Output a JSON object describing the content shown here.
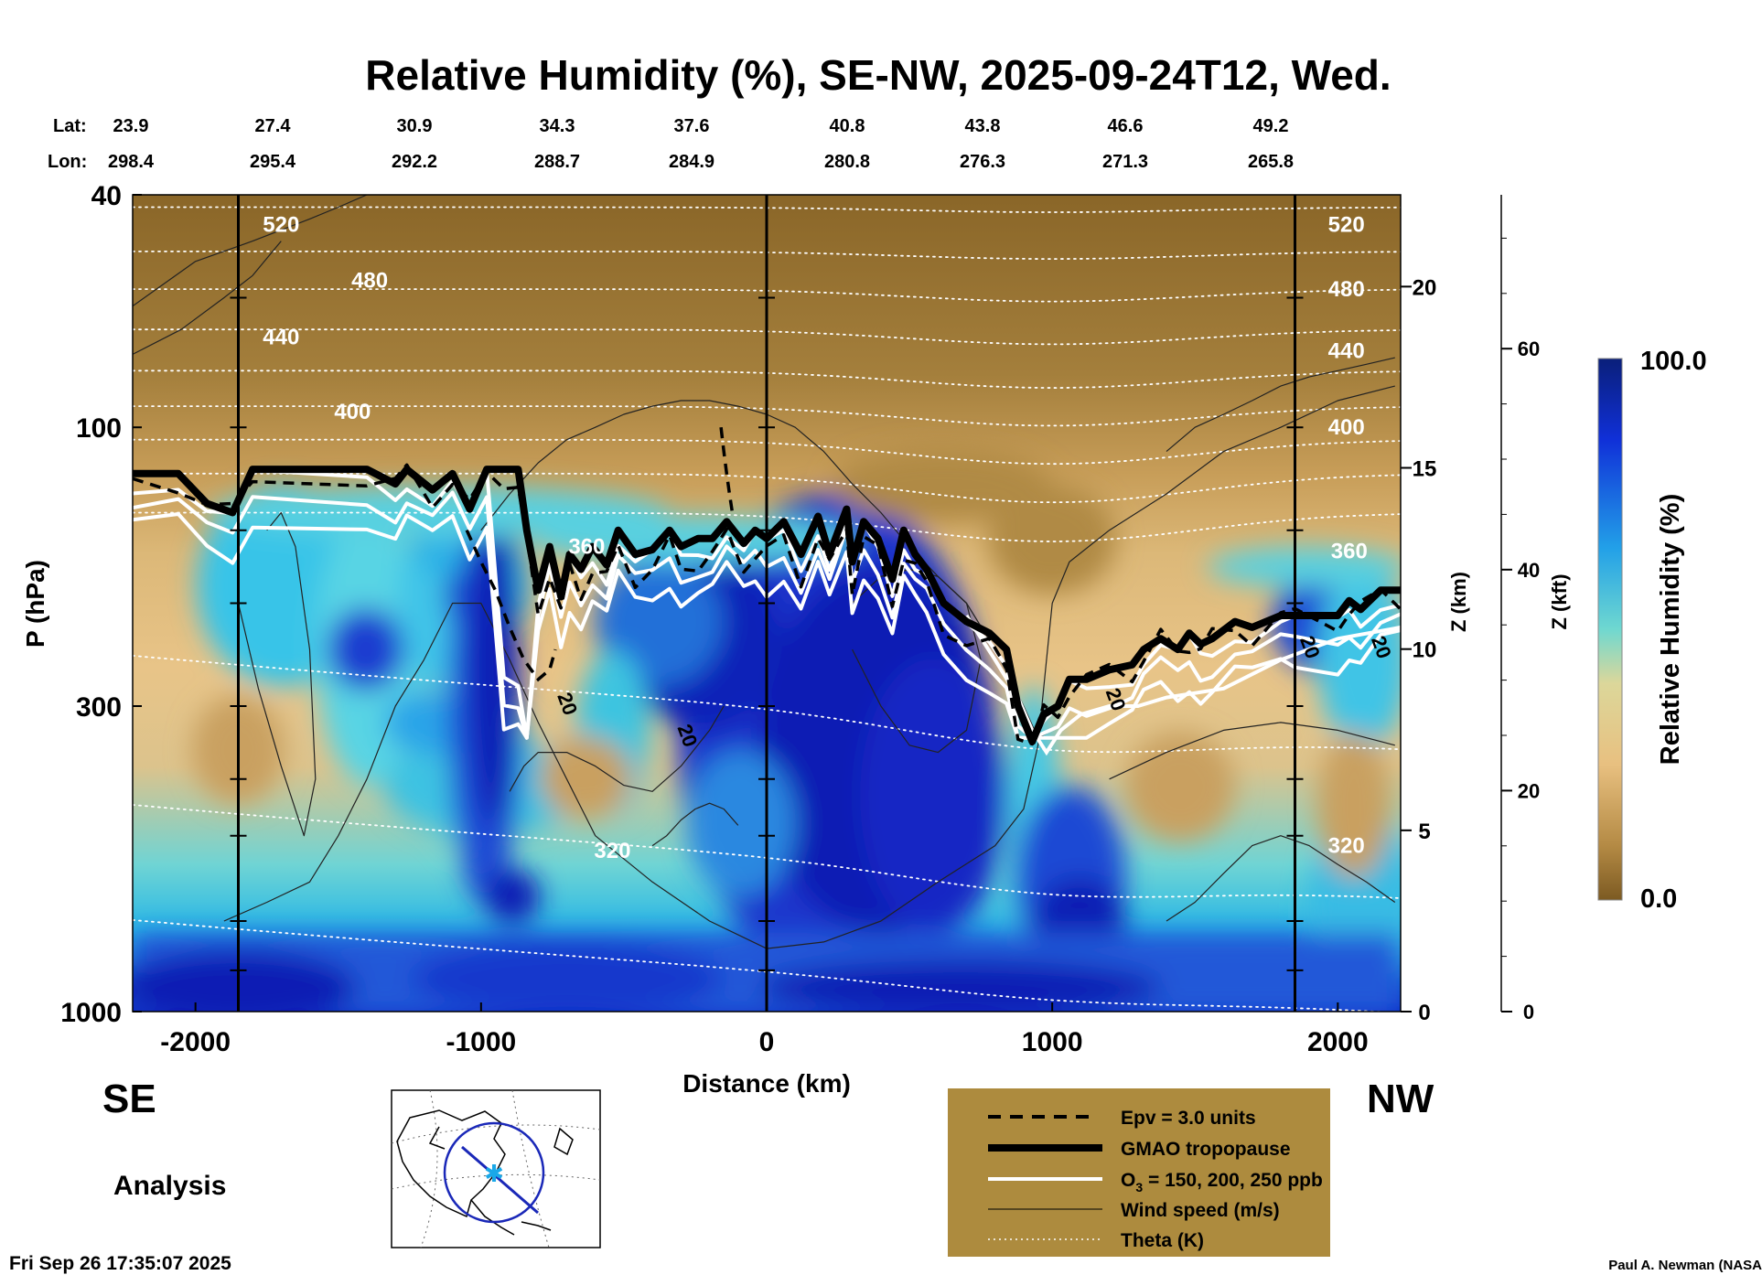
{
  "chart_data": {
    "type": "heatmap",
    "title": "Relative Humidity (%), SE-NW, 2025-09-24T12, Wed.",
    "variable": "Relative Humidity (%)",
    "xlabel": "Distance (km)",
    "ylabel": "P (hPa)",
    "z_km_label": "Z (km)",
    "z_kft_label": "Z (kft)",
    "xlim": [
      -2220,
      2220
    ],
    "ylim_hpa": [
      1000,
      40
    ],
    "x_ticks": [
      -2000,
      -1000,
      0,
      1000,
      2000
    ],
    "p_ticks": [
      40,
      100,
      300,
      1000
    ],
    "z_km_ticks": [
      0,
      5,
      10,
      15,
      20
    ],
    "z_kft_ticks": [
      0,
      20,
      40,
      60
    ],
    "section_markers_km": [
      -1850,
      0,
      1850
    ],
    "lat_label": "Lat:",
    "lon_label": "Lon:",
    "lat": [
      "23.9",
      "27.4",
      "30.9",
      "34.3",
      "37.6",
      "40.8",
      "43.8",
      "46.6",
      "49.2"
    ],
    "lon": [
      "298.4",
      "295.4",
      "292.2",
      "288.7",
      "284.9",
      "280.8",
      "276.3",
      "271.3",
      "265.8"
    ],
    "colorbar": {
      "label": "Relative Humidity (%)",
      "min_label": "0.0",
      "max_label": "100.0",
      "min": 0.0,
      "max": 100.0
    },
    "theta_levels_K": [
      320,
      360,
      400,
      440,
      480,
      520
    ],
    "theta_labels": [
      {
        "text": "520",
        "x_km": -1700,
        "p": 45
      },
      {
        "text": "480",
        "x_km": -1390,
        "p": 56
      },
      {
        "text": "440",
        "x_km": -1700,
        "p": 70
      },
      {
        "text": "400",
        "x_km": -1450,
        "p": 94
      },
      {
        "text": "360",
        "x_km": -630,
        "p": 160
      },
      {
        "text": "320",
        "x_km": -540,
        "p": 530
      },
      {
        "text": "520",
        "x_km": 2030,
        "p": 45
      },
      {
        "text": "480",
        "x_km": 2030,
        "p": 58
      },
      {
        "text": "440",
        "x_km": 2030,
        "p": 74
      },
      {
        "text": "400",
        "x_km": 2030,
        "p": 100
      },
      {
        "text": "360",
        "x_km": 2040,
        "p": 163
      },
      {
        "text": "320",
        "x_km": 2030,
        "p": 520
      }
    ],
    "wind_labels": [
      {
        "text": "20",
        "x_km": -720,
        "p": 300
      },
      {
        "text": "20",
        "x_km": -300,
        "p": 340
      },
      {
        "text": "20",
        "x_km": 1200,
        "p": 295
      },
      {
        "text": "20",
        "x_km": 1880,
        "p": 240
      },
      {
        "text": "20",
        "x_km": 2130,
        "p": 240
      }
    ],
    "tropopause_hpa": {
      "x_km": [
        -2220,
        -2060,
        -1960,
        -1870,
        -1800,
        -1400,
        -1300,
        -1260,
        -1170,
        -1100,
        -1040,
        -980,
        -920,
        -870,
        -840,
        -800,
        -760,
        -720,
        -690,
        -650,
        -610,
        -560,
        -520,
        -460,
        -400,
        -340,
        -300,
        -240,
        -190,
        -140,
        -80,
        -40,
        0,
        60,
        120,
        180,
        220,
        280,
        300,
        340,
        390,
        440,
        480,
        520,
        560,
        620,
        700,
        780,
        840,
        880,
        930,
        970,
        1020,
        1060,
        1120,
        1200,
        1280,
        1320,
        1380,
        1440,
        1480,
        1520,
        1560,
        1640,
        1700,
        1800,
        1850,
        2000,
        2040,
        2080,
        2150,
        2220
      ],
      "p_hpa": [
        120,
        120,
        135,
        140,
        118,
        118,
        125,
        118,
        128,
        120,
        138,
        118,
        118,
        118,
        150,
        190,
        160,
        195,
        165,
        175,
        160,
        172,
        150,
        165,
        162,
        150,
        160,
        155,
        155,
        145,
        158,
        150,
        155,
        145,
        165,
        142,
        165,
        138,
        170,
        145,
        155,
        182,
        150,
        165,
        175,
        200,
        215,
        225,
        240,
        300,
        345,
        310,
        300,
        270,
        270,
        260,
        255,
        240,
        230,
        240,
        225,
        235,
        230,
        215,
        220,
        210,
        210,
        210,
        198,
        205,
        190,
        190
      ]
    },
    "legend": {
      "items": [
        {
          "style": "dashed",
          "label": "Epv = 3.0 units"
        },
        {
          "style": "thick-black",
          "label": "GMAO tropopause"
        },
        {
          "style": "white",
          "label_main": "O",
          "label_sub": "3",
          "label_rest": " = 150, 200, 250 ppb"
        },
        {
          "style": "thin-black",
          "label": "Wind speed (m/s)"
        },
        {
          "style": "dotted-white",
          "label": "Theta (K)"
        }
      ]
    },
    "left_end_label": "SE",
    "right_end_label": "NW",
    "analysis_label": "Analysis",
    "timestamp": "Fri Sep 26 17:35:07 2025",
    "credit": "Paul A. Newman (NASA"
  },
  "colors": {
    "dry": "#9b7838",
    "mid": "#e8c488",
    "moist": "#29b8e6",
    "wet": "#0818b8",
    "legend_bg": "#ad8b3e"
  }
}
